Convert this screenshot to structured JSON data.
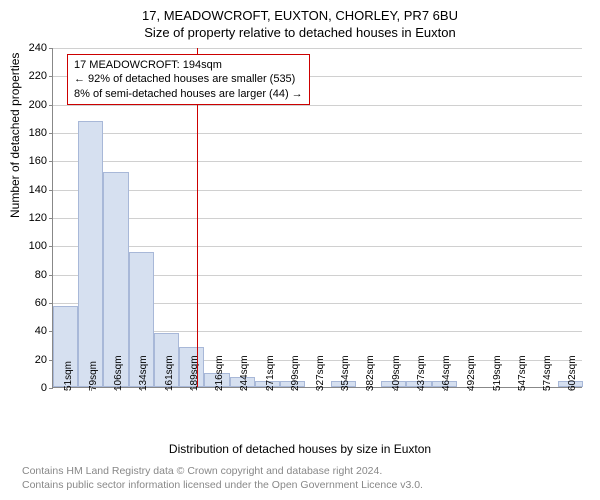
{
  "title": "17, MEADOWCROFT, EUXTON, CHORLEY, PR7 6BU",
  "subtitle": "Size of property relative to detached houses in Euxton",
  "chart": {
    "type": "histogram",
    "ylabel": "Number of detached properties",
    "xlabel": "Distribution of detached houses by size in Euxton",
    "ylim": [
      0,
      240
    ],
    "ytick_step": 20,
    "yticks": [
      0,
      20,
      40,
      60,
      80,
      100,
      120,
      140,
      160,
      180,
      200,
      220,
      240
    ],
    "xticks": [
      "51sqm",
      "79sqm",
      "106sqm",
      "134sqm",
      "161sqm",
      "189sqm",
      "216sqm",
      "244sqm",
      "271sqm",
      "299sqm",
      "327sqm",
      "354sqm",
      "382sqm",
      "409sqm",
      "437sqm",
      "464sqm",
      "492sqm",
      "519sqm",
      "547sqm",
      "574sqm",
      "602sqm"
    ],
    "values": [
      57,
      188,
      152,
      95,
      38,
      28,
      10,
      7,
      4,
      4,
      0,
      4,
      0,
      4,
      4,
      4,
      0,
      0,
      0,
      0,
      4
    ],
    "bar_color": "#d6e0f0",
    "bar_border_color": "#a8b8d8",
    "grid_color": "#d0d0d0",
    "background_color": "#ffffff",
    "title_fontsize": 13,
    "label_fontsize": 12,
    "tick_fontsize": 11
  },
  "marker": {
    "value": 194,
    "x_min": 51,
    "x_max": 602,
    "line_color": "#cc0000",
    "annotation": {
      "line1": "17 MEADOWCROFT: 194sqm",
      "line2": "← 92% of detached houses are smaller (535)",
      "line3": "8% of semi-detached houses are larger (44) →",
      "border_color": "#cc0000"
    }
  },
  "footnote": {
    "line1": "Contains HM Land Registry data © Crown copyright and database right 2024.",
    "line2": "Contains public sector information licensed under the Open Government Licence v3.0."
  }
}
